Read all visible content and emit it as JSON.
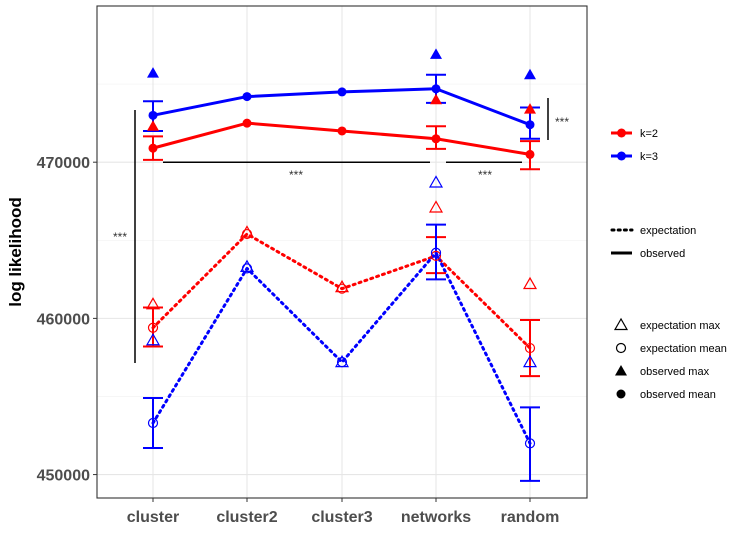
{
  "chart_data": {
    "type": "line",
    "ylabel": "log likelihood",
    "xlabel": "",
    "categories": [
      "cluster",
      "cluster2",
      "cluster3",
      "networks",
      "random"
    ],
    "ylim": [
      448500,
      480000
    ],
    "yticks": [
      450000,
      460000,
      470000
    ],
    "yticks_labels": [
      "450000",
      "460000",
      "470000"
    ],
    "grid": true,
    "colors": {
      "k2": "#ff0000",
      "k3": "#0000ff"
    },
    "series": [
      {
        "name": "k=2",
        "k": "k2",
        "kind": "observed",
        "values": [
          470900,
          472500,
          472000,
          471500,
          470500
        ],
        "err": [
          [
            470150,
            471650
          ],
          null,
          null,
          [
            470850,
            472300
          ],
          [
            469550,
            471350
          ]
        ]
      },
      {
        "name": "k=3",
        "k": "k3",
        "kind": "observed",
        "values": [
          473000,
          474200,
          474500,
          474700,
          472400
        ],
        "err": [
          [
            472000,
            473900
          ],
          null,
          null,
          [
            473800,
            475600
          ],
          [
            471500,
            473500
          ]
        ]
      },
      {
        "name": "k=2",
        "k": "k2",
        "kind": "expectation",
        "values": [
          459400,
          465400,
          461900,
          464000,
          458100
        ],
        "err": [
          [
            458200,
            460700
          ],
          null,
          null,
          [
            462900,
            465200
          ],
          [
            456300,
            459900
          ]
        ]
      },
      {
        "name": "k=3",
        "k": "k3",
        "kind": "expectation",
        "values": [
          453300,
          463200,
          457200,
          464200,
          452000
        ],
        "err": [
          [
            451700,
            454900
          ],
          null,
          null,
          [
            462500,
            466000
          ],
          [
            449600,
            454300
          ]
        ]
      }
    ],
    "observed_max": {
      "k2": [
        472300,
        null,
        null,
        474000,
        473400
      ],
      "k3": [
        475700,
        null,
        null,
        476900,
        475600
      ]
    },
    "expectation_max": {
      "k2": [
        460900,
        465500,
        462000,
        467100,
        462200
      ],
      "k3": [
        458600,
        463300,
        457200,
        468700,
        457200
      ]
    },
    "significance": [
      {
        "label": "***",
        "between": "cluster vs random (observed, horizontal)"
      },
      {
        "label": "***",
        "between": "networks vs random (observed, horizontal)"
      },
      {
        "label": "***",
        "between": "observed vs expectation (cluster, vertical)"
      },
      {
        "label": "***",
        "between": "k=2 vs k=3 (random, vertical)"
      }
    ],
    "legend": {
      "position": "right",
      "groups": [
        [
          "k=2",
          "k=3"
        ],
        [
          "expectation",
          "observed"
        ],
        [
          "expectation max",
          "expectation mean",
          "observed max",
          "observed mean"
        ]
      ]
    }
  }
}
